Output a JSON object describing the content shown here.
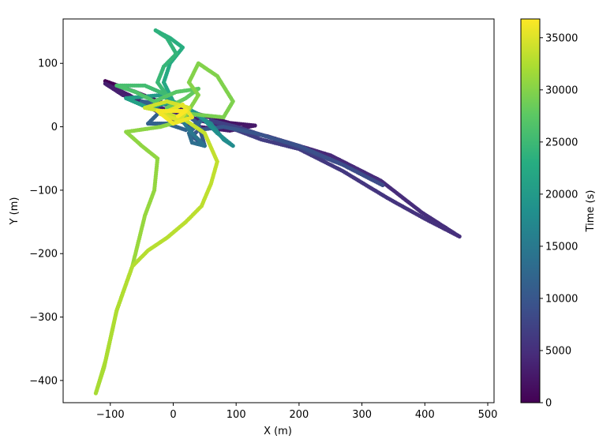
{
  "chart_data": {
    "type": "scatter",
    "title": "",
    "xlabel": "X (m)",
    "ylabel": "Y (m)",
    "xlim": [
      -175,
      510
    ],
    "ylim": [
      -435,
      170
    ],
    "xticks": [
      -100,
      0,
      100,
      200,
      300,
      400,
      500
    ],
    "yticks": [
      -400,
      -300,
      -200,
      -100,
      0,
      100
    ],
    "grid": false,
    "colorbar": {
      "label": "Time (s)",
      "colormap": "viridis",
      "range": [
        0,
        36800
      ],
      "ticks": [
        0,
        5000,
        10000,
        15000,
        20000,
        25000,
        30000,
        35000
      ]
    },
    "tracks": [
      {
        "t": [
          0,
          2500
        ],
        "points": [
          [
            -108,
            72
          ],
          [
            -60,
            55
          ],
          [
            -10,
            35
          ],
          [
            40,
            20
          ],
          [
            90,
            6
          ],
          [
            130,
            2
          ]
        ]
      },
      {
        "t": [
          2500,
          5000
        ],
        "points": [
          [
            130,
            2
          ],
          [
            90,
            -6
          ],
          [
            40,
            0
          ],
          [
            -10,
            15
          ],
          [
            -70,
            50
          ],
          [
            -108,
            68
          ],
          [
            -80,
            50
          ],
          [
            -20,
            30
          ],
          [
            60,
            5
          ],
          [
            150,
            -15
          ],
          [
            250,
            -45
          ],
          [
            330,
            -85
          ],
          [
            395,
            -135
          ],
          [
            455,
            -173
          ]
        ]
      },
      {
        "t": [
          5000,
          8500
        ],
        "points": [
          [
            455,
            -173
          ],
          [
            400,
            -145
          ],
          [
            340,
            -112
          ],
          [
            270,
            -70
          ],
          [
            200,
            -35
          ],
          [
            140,
            -20
          ],
          [
            100,
            -5
          ],
          [
            60,
            10
          ],
          [
            100,
            0
          ],
          [
            180,
            -25
          ],
          [
            270,
            -60
          ],
          [
            333,
            -92
          ]
        ]
      },
      {
        "t": [
          8500,
          12000
        ],
        "points": [
          [
            333,
            -92
          ],
          [
            270,
            -60
          ],
          [
            200,
            -30
          ],
          [
            130,
            -10
          ],
          [
            80,
            0
          ],
          [
            40,
            -5
          ],
          [
            30,
            -15
          ],
          [
            50,
            -30
          ],
          [
            40,
            5
          ],
          [
            20,
            20
          ],
          [
            -10,
            35
          ],
          [
            -50,
            40
          ],
          [
            -20,
            25
          ],
          [
            -40,
            5
          ],
          [
            -10,
            5
          ],
          [
            20,
            -5
          ],
          [
            45,
            10
          ]
        ]
      },
      {
        "t": [
          12000,
          17000
        ],
        "points": [
          [
            45,
            10
          ],
          [
            25,
            -10
          ],
          [
            30,
            -25
          ],
          [
            50,
            -30
          ],
          [
            30,
            -10
          ],
          [
            10,
            15
          ],
          [
            35,
            20
          ],
          [
            60,
            5
          ]
        ]
      },
      {
        "t": [
          17000,
          22000
        ],
        "points": [
          [
            60,
            5
          ],
          [
            80,
            -20
          ],
          [
            95,
            -30
          ],
          [
            70,
            -10
          ],
          [
            40,
            20
          ],
          [
            -20,
            50
          ],
          [
            -75,
            45
          ],
          [
            -40,
            30
          ],
          [
            0,
            40
          ]
        ]
      },
      {
        "t": [
          22000,
          25000
        ],
        "points": [
          [
            0,
            40
          ],
          [
            -15,
            70
          ],
          [
            -5,
            100
          ],
          [
            15,
            125
          ],
          [
            -5,
            140
          ],
          [
            -28,
            152
          ],
          [
            -10,
            140
          ],
          [
            5,
            115
          ],
          [
            -15,
            95
          ],
          [
            -25,
            70
          ],
          [
            -10,
            50
          ]
        ]
      },
      {
        "t": [
          25000,
          29500
        ],
        "points": [
          [
            -10,
            50
          ],
          [
            -45,
            65
          ],
          [
            -90,
            65
          ],
          [
            -60,
            55
          ],
          [
            -30,
            40
          ],
          [
            5,
            55
          ],
          [
            40,
            60
          ],
          [
            20,
            45
          ],
          [
            -10,
            30
          ],
          [
            30,
            20
          ],
          [
            80,
            15
          ]
        ]
      },
      {
        "t": [
          29500,
          32000
        ],
        "points": [
          [
            80,
            15
          ],
          [
            95,
            40
          ],
          [
            70,
            80
          ],
          [
            40,
            100
          ],
          [
            25,
            70
          ],
          [
            40,
            50
          ],
          [
            15,
            10
          ],
          [
            -20,
            0
          ],
          [
            -75,
            -8
          ],
          [
            -50,
            -30
          ],
          [
            -25,
            -50
          ],
          [
            -30,
            -100
          ],
          [
            -45,
            -140
          ],
          [
            -65,
            -220
          ],
          [
            -90,
            -290
          ],
          [
            -110,
            -380
          ],
          [
            -123,
            -420
          ]
        ]
      },
      {
        "t": [
          32000,
          34000
        ],
        "points": [
          [
            -123,
            -420
          ],
          [
            -108,
            -370
          ],
          [
            -90,
            -290
          ],
          [
            -65,
            -220
          ],
          [
            -40,
            -195
          ],
          [
            -10,
            -175
          ],
          [
            20,
            -150
          ],
          [
            45,
            -125
          ],
          [
            60,
            -90
          ],
          [
            70,
            -55
          ],
          [
            50,
            -10
          ],
          [
            20,
            10
          ],
          [
            -20,
            25
          ],
          [
            -45,
            30
          ]
        ]
      },
      {
        "t": [
          34000,
          36800
        ],
        "points": [
          [
            -45,
            30
          ],
          [
            -10,
            40
          ],
          [
            25,
            30
          ],
          [
            10,
            10
          ],
          [
            -20,
            20
          ],
          [
            15,
            35
          ],
          [
            30,
            15
          ],
          [
            0,
            5
          ],
          [
            -25,
            25
          ],
          [
            20,
            25
          ],
          [
            5,
            15
          ]
        ]
      }
    ]
  }
}
